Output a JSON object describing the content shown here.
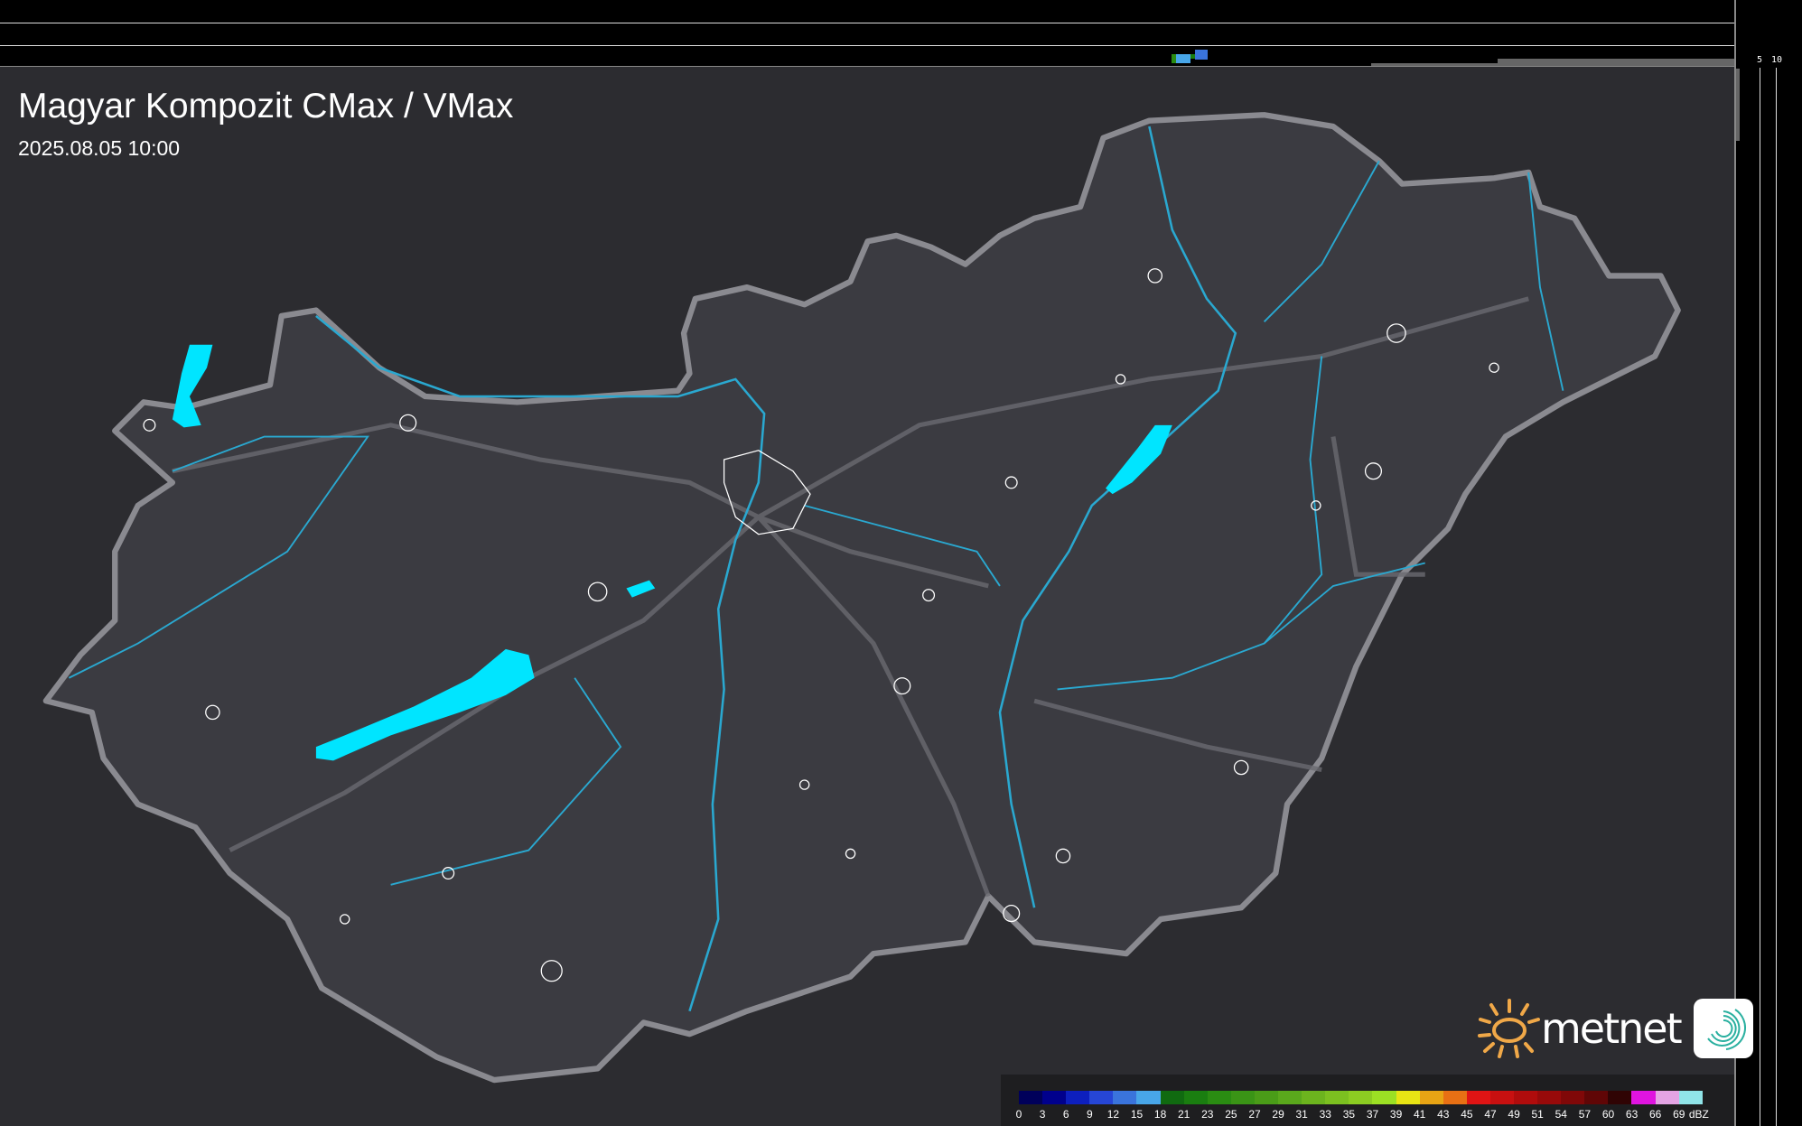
{
  "header": {
    "title": "Magyar Kompozit CMax / VMax",
    "datetime": "2025.08.05 10:00"
  },
  "top_panel": {
    "ticks": [
      "10",
      "5"
    ]
  },
  "right_panel": {
    "ticks": [
      "5",
      "10"
    ]
  },
  "logo": {
    "text": "metnet"
  },
  "legend": {
    "unit": "dBZ",
    "labels": [
      "0",
      "3",
      "6",
      "9",
      "12",
      "15",
      "18",
      "21",
      "23",
      "25",
      "27",
      "29",
      "31",
      "33",
      "35",
      "37",
      "39",
      "41",
      "43",
      "45",
      "47",
      "49",
      "51",
      "54",
      "57",
      "60",
      "63",
      "66",
      "69"
    ],
    "colors": [
      "#00005a",
      "#00008c",
      "#0d1fbe",
      "#2646d6",
      "#3a74dc",
      "#48a6e8",
      "#106a10",
      "#1a7e10",
      "#2a8c12",
      "#3a9416",
      "#4a9c18",
      "#5aa81c",
      "#6cb41e",
      "#7cc020",
      "#8ccc22",
      "#9ce024",
      "#e8e414",
      "#e8a414",
      "#e87014",
      "#e01414",
      "#c81010",
      "#b00c0c",
      "#980a0a",
      "#800808",
      "#600606",
      "#300404",
      "#e014e0",
      "#e4a4e4",
      "#90e4e8"
    ]
  },
  "colors": {
    "background": "#2c2c30",
    "country_fill": "#3a3a40",
    "border": "#8a8a90",
    "river": "#2aa8d0",
    "lake": "#00e5ff"
  }
}
